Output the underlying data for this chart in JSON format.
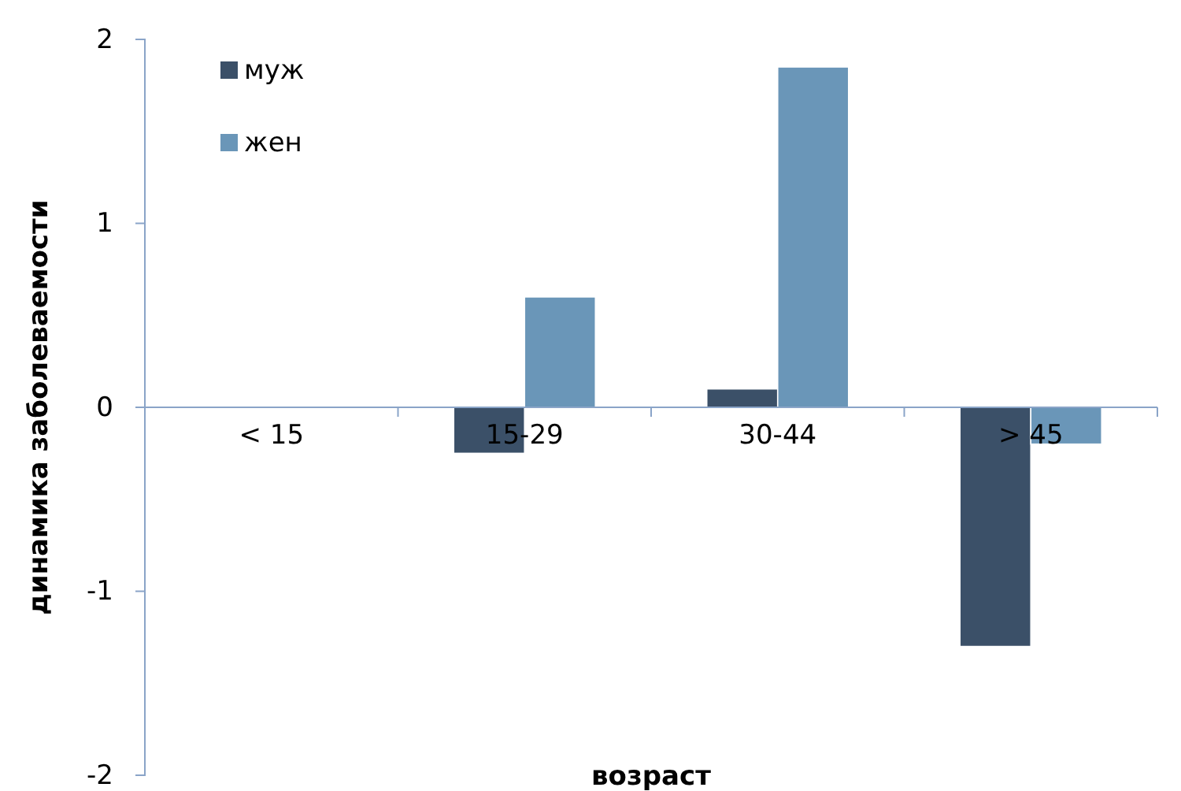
{
  "chart_data": {
    "type": "bar",
    "xlabel": "возраст",
    "ylabel": "динамика заболеваемости",
    "categories": [
      "< 15",
      "15-29",
      "30-44",
      "> 45"
    ],
    "series": [
      {
        "name": "муж",
        "color": "#3b5068",
        "values": [
          0,
          -0.25,
          0.1,
          -1.3
        ]
      },
      {
        "name": "жен",
        "color": "#6a96b8",
        "values": [
          0,
          0.6,
          1.85,
          -0.2
        ]
      }
    ],
    "ylim": [
      -2,
      2
    ],
    "yticks": [
      -2,
      -1,
      0,
      1,
      2
    ],
    "grid": false,
    "legend": "top left"
  }
}
